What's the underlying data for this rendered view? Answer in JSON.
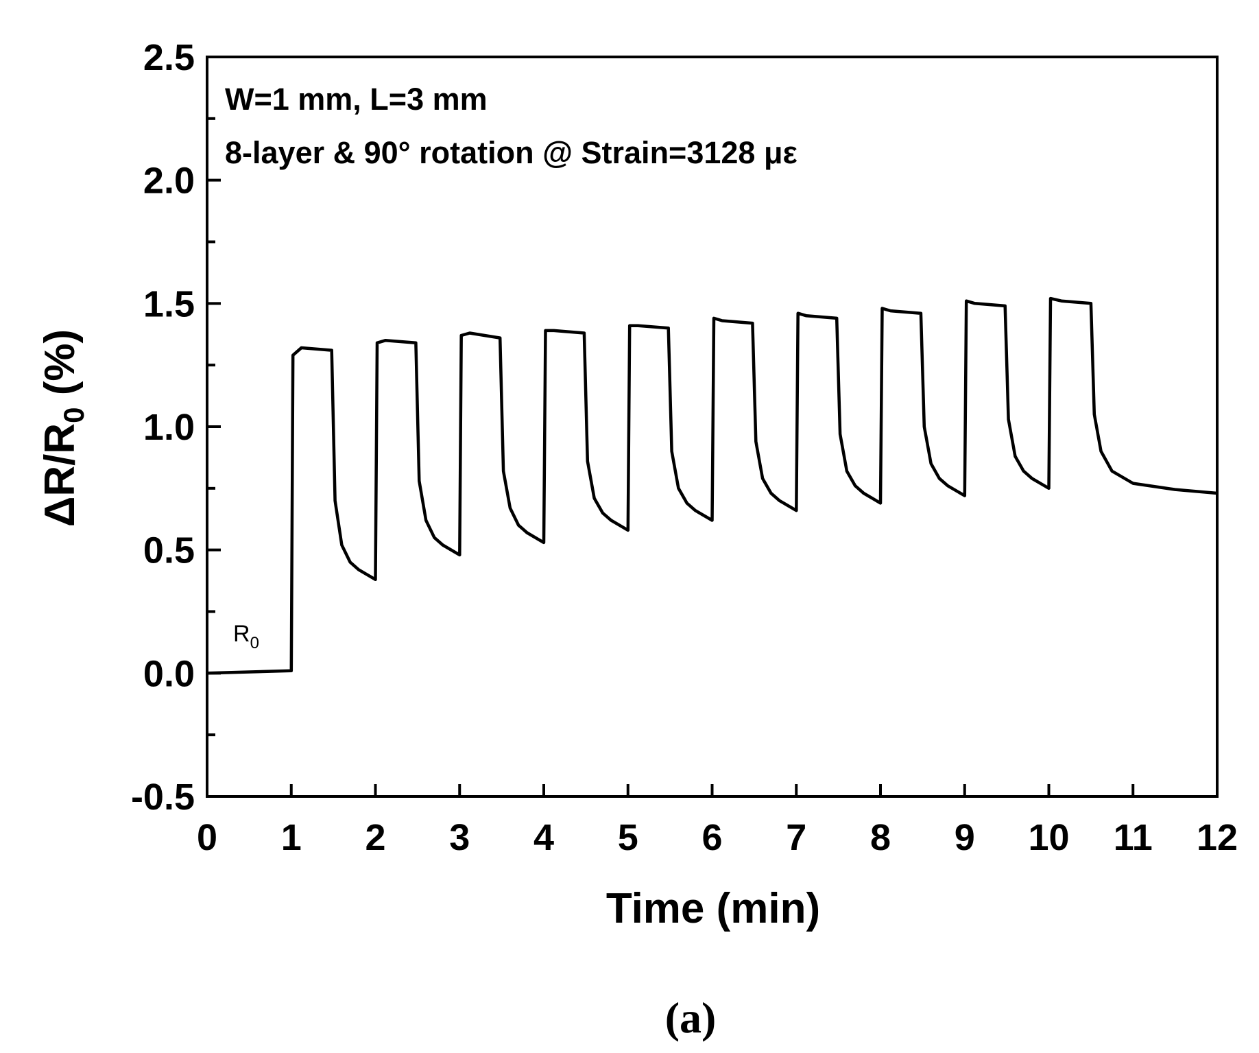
{
  "chart_data": {
    "type": "line",
    "xlabel": "Time (min)",
    "ylabel": "ΔR/R",
    "ylabel_sub": "0",
    "ylabel_suffix": " (%)",
    "xlim": [
      0,
      12
    ],
    "ylim": [
      -0.5,
      2.5
    ],
    "xticks": [
      0,
      1,
      2,
      3,
      4,
      5,
      6,
      7,
      8,
      9,
      10,
      11,
      12
    ],
    "yticks": [
      "-0.5",
      "0.0",
      "0.5",
      "1.0",
      "1.5",
      "2.0",
      "2.5"
    ],
    "grid": false,
    "legend": "none",
    "annotations": {
      "line1": "W=1 mm, L=3 mm",
      "line2": "8-layer  &  90° rotation @ Strain=3128 με",
      "r0_label": "R",
      "r0_sub": "0"
    },
    "caption": "(a)",
    "line_color": "#000000",
    "series": [
      {
        "points": [
          [
            0,
            0
          ],
          [
            1,
            0.01
          ],
          [
            1.02,
            1.29
          ],
          [
            1.12,
            1.32
          ],
          [
            1.48,
            1.31
          ],
          [
            1.52,
            0.7
          ],
          [
            1.6,
            0.52
          ],
          [
            1.7,
            0.45
          ],
          [
            1.8,
            0.42
          ],
          [
            2,
            0.38
          ],
          [
            2.02,
            1.34
          ],
          [
            2.12,
            1.35
          ],
          [
            2.48,
            1.34
          ],
          [
            2.52,
            0.78
          ],
          [
            2.6,
            0.62
          ],
          [
            2.7,
            0.55
          ],
          [
            2.8,
            0.52
          ],
          [
            3,
            0.48
          ],
          [
            3.02,
            1.37
          ],
          [
            3.12,
            1.38
          ],
          [
            3.48,
            1.36
          ],
          [
            3.52,
            0.82
          ],
          [
            3.6,
            0.67
          ],
          [
            3.7,
            0.6
          ],
          [
            3.8,
            0.57
          ],
          [
            4,
            0.53
          ],
          [
            4.02,
            1.39
          ],
          [
            4.12,
            1.39
          ],
          [
            4.48,
            1.38
          ],
          [
            4.52,
            0.86
          ],
          [
            4.6,
            0.71
          ],
          [
            4.7,
            0.65
          ],
          [
            4.8,
            0.62
          ],
          [
            5,
            0.58
          ],
          [
            5.02,
            1.41
          ],
          [
            5.12,
            1.41
          ],
          [
            5.48,
            1.4
          ],
          [
            5.52,
            0.9
          ],
          [
            5.6,
            0.75
          ],
          [
            5.7,
            0.69
          ],
          [
            5.8,
            0.66
          ],
          [
            6,
            0.62
          ],
          [
            6.02,
            1.44
          ],
          [
            6.12,
            1.43
          ],
          [
            6.48,
            1.42
          ],
          [
            6.52,
            0.94
          ],
          [
            6.6,
            0.79
          ],
          [
            6.7,
            0.73
          ],
          [
            6.8,
            0.7
          ],
          [
            7,
            0.66
          ],
          [
            7.02,
            1.46
          ],
          [
            7.12,
            1.45
          ],
          [
            7.48,
            1.44
          ],
          [
            7.52,
            0.97
          ],
          [
            7.6,
            0.82
          ],
          [
            7.7,
            0.76
          ],
          [
            7.8,
            0.73
          ],
          [
            8,
            0.69
          ],
          [
            8.02,
            1.48
          ],
          [
            8.12,
            1.47
          ],
          [
            8.48,
            1.46
          ],
          [
            8.52,
            1.0
          ],
          [
            8.6,
            0.85
          ],
          [
            8.7,
            0.79
          ],
          [
            8.8,
            0.76
          ],
          [
            9,
            0.72
          ],
          [
            9.02,
            1.51
          ],
          [
            9.12,
            1.5
          ],
          [
            9.48,
            1.49
          ],
          [
            9.52,
            1.03
          ],
          [
            9.6,
            0.88
          ],
          [
            9.7,
            0.82
          ],
          [
            9.8,
            0.79
          ],
          [
            10,
            0.75
          ],
          [
            10.02,
            1.52
          ],
          [
            10.15,
            1.51
          ],
          [
            10.5,
            1.5
          ],
          [
            10.54,
            1.05
          ],
          [
            10.62,
            0.9
          ],
          [
            10.75,
            0.82
          ],
          [
            11,
            0.77
          ],
          [
            11.5,
            0.745
          ],
          [
            12,
            0.73
          ]
        ]
      }
    ]
  }
}
